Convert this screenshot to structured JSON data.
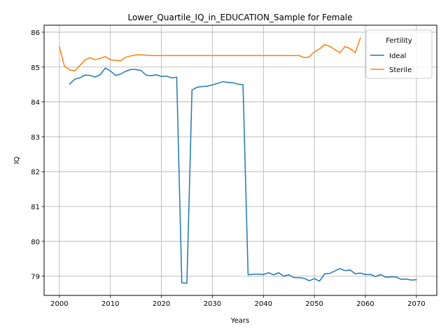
{
  "chart_data": {
    "type": "line",
    "title": "Lower_Quartile_IQ_in_EDUCATION_Sample for Female",
    "xlabel": "Years",
    "ylabel": "IQ",
    "xlim": [
      1997,
      2074
    ],
    "ylim": [
      78.45,
      86.2
    ],
    "xticks": [
      2000,
      2010,
      2020,
      2030,
      2040,
      2050,
      2060,
      2070
    ],
    "yticks": [
      79,
      80,
      81,
      82,
      83,
      84,
      85,
      86
    ],
    "grid": true,
    "legend": {
      "title": "Fertility",
      "position": "top-right"
    },
    "series": [
      {
        "name": "Ideal",
        "color": "#1f77b4",
        "x": [
          2002,
          2003,
          2004,
          2005,
          2006,
          2007,
          2008,
          2009,
          2010,
          2011,
          2012,
          2013,
          2014,
          2015,
          2016,
          2017,
          2018,
          2019,
          2020,
          2021,
          2022,
          2023,
          2024,
          2025,
          2026,
          2027,
          2028,
          2029,
          2030,
          2031,
          2032,
          2033,
          2034,
          2035,
          2036,
          2037,
          2038,
          2039,
          2040,
          2041,
          2042,
          2043,
          2044,
          2045,
          2046,
          2047,
          2048,
          2049,
          2050,
          2051,
          2052,
          2053,
          2054,
          2055,
          2056,
          2057,
          2058,
          2059,
          2060,
          2061,
          2062,
          2063,
          2064,
          2065,
          2066,
          2067,
          2068,
          2069,
          2070
        ],
        "values": [
          84.51,
          84.65,
          84.69,
          84.77,
          84.76,
          84.71,
          84.78,
          84.97,
          84.89,
          84.76,
          84.8,
          84.88,
          84.93,
          84.93,
          84.9,
          84.77,
          84.75,
          84.78,
          84.73,
          84.74,
          84.69,
          84.71,
          78.81,
          78.8,
          84.34,
          84.42,
          84.44,
          84.45,
          84.49,
          84.53,
          84.58,
          84.56,
          84.55,
          84.51,
          84.49,
          79.04,
          79.06,
          79.06,
          79.05,
          79.1,
          79.04,
          79.1,
          79.0,
          79.04,
          78.96,
          78.96,
          78.94,
          78.87,
          78.93,
          78.86,
          79.07,
          79.08,
          79.15,
          79.22,
          79.16,
          79.18,
          79.07,
          79.09,
          79.05,
          79.05,
          78.99,
          79.05,
          78.97,
          78.98,
          78.98,
          78.91,
          78.92,
          78.89,
          78.9
        ]
      },
      {
        "name": "Sterile",
        "color": "#ff7f0e",
        "x": [
          2000,
          2001,
          2002,
          2003,
          2004,
          2005,
          2006,
          2007,
          2008,
          2009,
          2010,
          2011,
          2012,
          2013,
          2014,
          2015,
          2016,
          2017,
          2018,
          2019,
          2020,
          2021,
          2022,
          2023,
          2024,
          2025,
          2026,
          2027,
          2028,
          2029,
          2030,
          2031,
          2032,
          2033,
          2034,
          2035,
          2036,
          2037,
          2038,
          2039,
          2040,
          2041,
          2042,
          2043,
          2044,
          2045,
          2046,
          2047,
          2048,
          2049,
          2050,
          2051,
          2052,
          2053,
          2054,
          2055,
          2056,
          2057,
          2058,
          2059
        ],
        "values": [
          85.57,
          85.02,
          84.92,
          84.89,
          85.04,
          85.2,
          85.27,
          85.21,
          85.25,
          85.3,
          85.21,
          85.19,
          85.18,
          85.28,
          85.32,
          85.35,
          85.35,
          85.34,
          85.33,
          85.33,
          85.33,
          85.33,
          85.33,
          85.33,
          85.33,
          85.33,
          85.33,
          85.33,
          85.33,
          85.33,
          85.33,
          85.33,
          85.33,
          85.33,
          85.33,
          85.33,
          85.33,
          85.33,
          85.33,
          85.33,
          85.33,
          85.33,
          85.33,
          85.33,
          85.33,
          85.33,
          85.33,
          85.33,
          85.27,
          85.29,
          85.44,
          85.52,
          85.64,
          85.6,
          85.5,
          85.41,
          85.59,
          85.53,
          85.41,
          85.83
        ]
      }
    ]
  }
}
